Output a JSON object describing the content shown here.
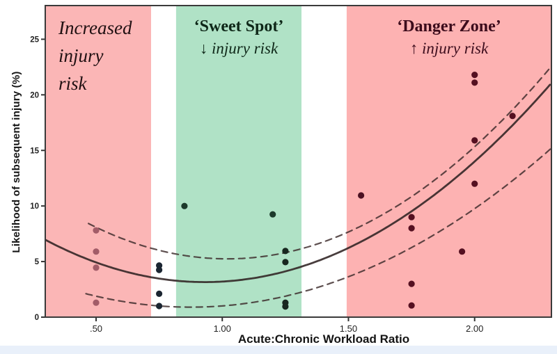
{
  "chart_data": {
    "type": "scatter",
    "xlabel": "Acute:Chronic Workload Ratio",
    "ylabel": "Likelihood of subsequent injury (%)",
    "xlim": [
      0.2986,
      2.3043
    ],
    "ylim": [
      0,
      28.03
    ],
    "grid": false,
    "legend": "none",
    "x_ticks": [
      {
        "label": ".50",
        "value": 0.5
      },
      {
        "label": "1.00",
        "value": 1.0
      },
      {
        "label": "1.50",
        "value": 1.5
      },
      {
        "label": "2.00",
        "value": 2.0
      }
    ],
    "y_ticks": [
      {
        "label": "0",
        "value": 0
      },
      {
        "label": "5",
        "value": 5
      },
      {
        "label": "10",
        "value": 10
      },
      {
        "label": "15",
        "value": 15
      },
      {
        "label": "20",
        "value": 20
      },
      {
        "label": "25",
        "value": 25
      }
    ],
    "zones": [
      {
        "name": "increased-risk",
        "x0": 0.2986,
        "x1": 0.718,
        "color": "#fbb6b6"
      },
      {
        "name": "sweet-spot",
        "x0": 0.817,
        "x1": 1.314,
        "color": "#b0e2c6"
      },
      {
        "name": "danger-zone",
        "x0": 1.493,
        "x1": 2.3043,
        "color": "#fdb2b2"
      }
    ],
    "annotations": {
      "left": {
        "lines": [
          "Increased",
          "injury",
          "risk"
        ]
      },
      "middle": {
        "title": "‘Sweet Spot’",
        "subtitle": "↓ injury risk"
      },
      "right": {
        "title": "‘Danger Zone’",
        "subtitle": "↑ injury risk"
      }
    },
    "points": [
      {
        "x": 0.5,
        "y": 7.8,
        "color": "#a25c68"
      },
      {
        "x": 0.5,
        "y": 5.9,
        "color": "#a25c68"
      },
      {
        "x": 0.5,
        "y": 4.45,
        "color": "#a25c68"
      },
      {
        "x": 0.5,
        "y": 1.3,
        "color": "#a25c68"
      },
      {
        "x": 0.75,
        "y": 4.65,
        "color": "#1b2531"
      },
      {
        "x": 0.75,
        "y": 4.25,
        "color": "#1b2531"
      },
      {
        "x": 0.75,
        "y": 2.1,
        "color": "#1b2531"
      },
      {
        "x": 0.75,
        "y": 1.0,
        "color": "#1b2531"
      },
      {
        "x": 0.85,
        "y": 10.0,
        "color": "#1c3a2b"
      },
      {
        "x": 1.2,
        "y": 9.25,
        "color": "#1c3a2b"
      },
      {
        "x": 1.25,
        "y": 5.95,
        "color": "#17271f"
      },
      {
        "x": 1.25,
        "y": 4.95,
        "color": "#17271f"
      },
      {
        "x": 1.25,
        "y": 1.3,
        "color": "#17271f"
      },
      {
        "x": 1.25,
        "y": 0.95,
        "color": "#17271f"
      },
      {
        "x": 1.55,
        "y": 10.95,
        "color": "#4c1122"
      },
      {
        "x": 1.75,
        "y": 9.0,
        "color": "#551021"
      },
      {
        "x": 1.75,
        "y": 8.0,
        "color": "#551021"
      },
      {
        "x": 1.75,
        "y": 3.0,
        "color": "#551021"
      },
      {
        "x": 1.75,
        "y": 1.05,
        "color": "#551021"
      },
      {
        "x": 1.95,
        "y": 5.9,
        "color": "#551021"
      },
      {
        "x": 2.0,
        "y": 12.0,
        "color": "#551021"
      },
      {
        "x": 2.0,
        "y": 15.9,
        "color": "#551021"
      },
      {
        "x": 2.0,
        "y": 21.1,
        "color": "#551021"
      },
      {
        "x": 2.0,
        "y": 21.8,
        "color": "#551021"
      },
      {
        "x": 2.15,
        "y": 18.1,
        "color": "#551021"
      }
    ],
    "curves": [
      {
        "name": "fit",
        "style": "solid",
        "coef": [
          9.5,
          -17.7,
          11.4
        ],
        "domain": [
          0.2986,
          2.3043
        ],
        "color": "#2f2222",
        "width": 2.8,
        "opacity": 0.88,
        "dash": ""
      },
      {
        "name": "upper-confidence",
        "style": "dashed",
        "coef": [
          10.5,
          -21.42,
          16.17
        ],
        "domain": [
          0.47,
          2.3043
        ],
        "color": "#3b2a2a",
        "width": 2.2,
        "opacity": 0.82,
        "dash": "9 7"
      },
      {
        "name": "lower-confidence",
        "style": "dashed",
        "coef": [
          7.0,
          -12.25,
          6.26
        ],
        "domain": [
          0.46,
          2.3043
        ],
        "color": "#3b2a2a",
        "width": 2.2,
        "opacity": 0.82,
        "dash": "9 7"
      }
    ],
    "frame_color": "#3a3a3a",
    "tick_color": "#333333",
    "tick_label_color": "#222222"
  }
}
